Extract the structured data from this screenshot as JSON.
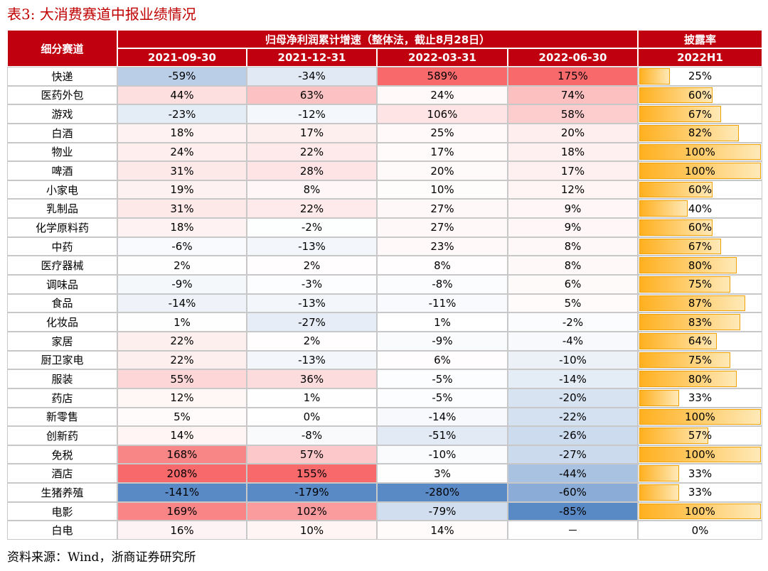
{
  "title": "表3:  大消费赛道中报业绩情况",
  "table": {
    "header": {
      "corner": "细分赛道",
      "group": "归母净利润累计增速（整体法，截止8月28日）",
      "periods": [
        "2021-09-30",
        "2021-12-31",
        "2022-03-31",
        "2022-06-30"
      ],
      "rate": "披露率",
      "rate_period": "2022H1"
    },
    "rows": [
      [
        "快递",
        "-59%",
        "-34%",
        "589%",
        "175%",
        "25%"
      ],
      [
        "医药外包",
        "44%",
        "63%",
        "24%",
        "74%",
        "60%"
      ],
      [
        "游戏",
        "-23%",
        "-12%",
        "106%",
        "58%",
        "67%"
      ],
      [
        "白酒",
        "18%",
        "17%",
        "25%",
        "20%",
        "82%"
      ],
      [
        "物业",
        "24%",
        "22%",
        "17%",
        "18%",
        "100%"
      ],
      [
        "啤酒",
        "31%",
        "28%",
        "20%",
        "17%",
        "100%"
      ],
      [
        "小家电",
        "19%",
        "8%",
        "10%",
        "12%",
        "60%"
      ],
      [
        "乳制品",
        "31%",
        "22%",
        "27%",
        "9%",
        "40%"
      ],
      [
        "化学原料药",
        "18%",
        "-2%",
        "27%",
        "9%",
        "60%"
      ],
      [
        "中药",
        "-6%",
        "-13%",
        "23%",
        "8%",
        "67%"
      ],
      [
        "医疗器械",
        "2%",
        "2%",
        "8%",
        "8%",
        "80%"
      ],
      [
        "调味品",
        "-9%",
        "-3%",
        "-8%",
        "6%",
        "75%"
      ],
      [
        "食品",
        "-14%",
        "-13%",
        "-11%",
        "5%",
        "87%"
      ],
      [
        "化妆品",
        "1%",
        "-27%",
        "1%",
        "-2%",
        "83%"
      ],
      [
        "家居",
        "22%",
        "2%",
        "-9%",
        "-4%",
        "64%"
      ],
      [
        "厨卫家电",
        "22%",
        "-13%",
        "6%",
        "-10%",
        "75%"
      ],
      [
        "服装",
        "55%",
        "36%",
        "-5%",
        "-14%",
        "80%"
      ],
      [
        "药店",
        "12%",
        "1%",
        "-5%",
        "-20%",
        "33%"
      ],
      [
        "新零售",
        "5%",
        "0%",
        "-14%",
        "-22%",
        "100%"
      ],
      [
        "创新药",
        "14%",
        "-8%",
        "-51%",
        "-26%",
        "57%"
      ],
      [
        "免税",
        "168%",
        "57%",
        "-10%",
        "-27%",
        "100%"
      ],
      [
        "酒店",
        "208%",
        "155%",
        "3%",
        "-44%",
        "33%"
      ],
      [
        "生猪养殖",
        "-141%",
        "-179%",
        "-280%",
        "-60%",
        "33%"
      ],
      [
        "电影",
        "169%",
        "102%",
        "-79%",
        "-85%",
        "100%"
      ],
      [
        "白电",
        "16%",
        "10%",
        "14%",
        "－",
        "0%"
      ]
    ]
  },
  "source": "资料来源：Wind，浙商证券研究所"
}
